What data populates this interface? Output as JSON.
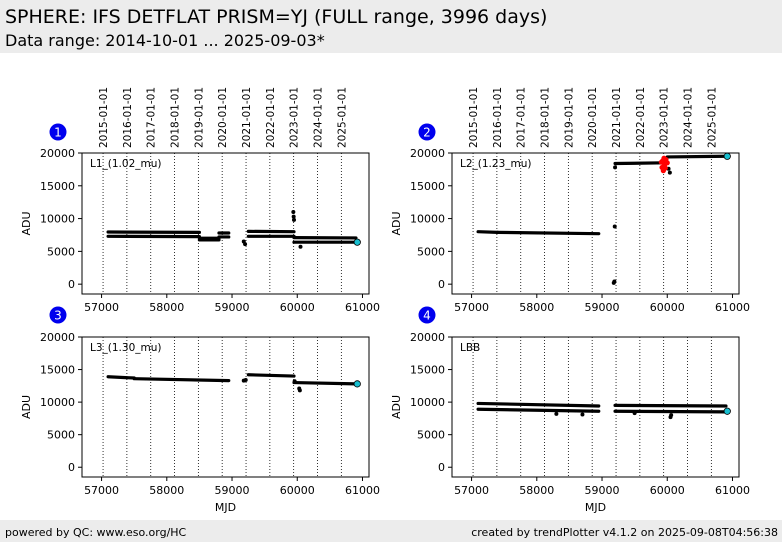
{
  "header": {
    "title": "SPHERE: IFS DETFLAT PRISM=YJ (FULL range, 3996 days)",
    "subtitle": "Data range: 2014-10-01 ... 2025-09-03*"
  },
  "footer": {
    "left": "powered by QC: www.eso.org/HC",
    "right": "created by trendPlotter v4.1.2 on 2025-09-08T04:56:38"
  },
  "colors": {
    "data": "#000000",
    "latest": "#17becf",
    "outlier": "#ff0000",
    "badge": "#0000ee"
  },
  "chart_data": [
    {
      "type": "scatter",
      "badge": "1",
      "panel_label": "L1_(1.02_mu)",
      "ylabel": "ADU",
      "xlabel": "",
      "xlim": [
        56700,
        61100
      ],
      "ylim": [
        -1500,
        20000
      ],
      "yticks": [
        0,
        5000,
        10000,
        15000,
        20000
      ],
      "xticks": [
        57000,
        58000,
        59000,
        60000,
        61000
      ],
      "top_dates": [
        "2015-01-01",
        "2016-01-01",
        "2017-01-01",
        "2018-01-01",
        "2019-01-01",
        "2020-01-01",
        "2021-01-01",
        "2022-01-01",
        "2023-01-01",
        "2024-01-01",
        "2025-01-01"
      ],
      "year_mjd": [
        57023,
        57388,
        57754,
        58119,
        58484,
        58849,
        59215,
        59580,
        59945,
        60310,
        60676
      ],
      "segments": [
        {
          "x": [
            57100,
            58500
          ],
          "y": [
            7950,
            7900
          ]
        },
        {
          "x": [
            57100,
            58500
          ],
          "y": [
            7300,
            7250
          ]
        },
        {
          "x": [
            58500,
            58800
          ],
          "y": [
            7000,
            7000
          ]
        },
        {
          "x": [
            58500,
            58800
          ],
          "y": [
            6750,
            6750
          ]
        },
        {
          "x": [
            58800,
            58950
          ],
          "y": [
            7800,
            7800
          ]
        },
        {
          "x": [
            58800,
            58950
          ],
          "y": [
            7200,
            7200
          ]
        },
        {
          "x": [
            59250,
            59950
          ],
          "y": [
            8050,
            8000
          ]
        },
        {
          "x": [
            59250,
            59950
          ],
          "y": [
            7300,
            7300
          ]
        },
        {
          "x": [
            59950,
            60900
          ],
          "y": [
            7100,
            7050
          ]
        },
        {
          "x": [
            59950,
            60900
          ],
          "y": [
            6400,
            6400
          ]
        }
      ],
      "points": [
        {
          "x": 59180,
          "y": 6500
        },
        {
          "x": 59200,
          "y": 6100
        },
        {
          "x": 59940,
          "y": 11000
        },
        {
          "x": 59945,
          "y": 10300
        },
        {
          "x": 59950,
          "y": 9800
        },
        {
          "x": 60050,
          "y": 5700
        }
      ],
      "outliers": [],
      "latest": {
        "x": 60920,
        "y": 6400
      }
    },
    {
      "type": "scatter",
      "badge": "2",
      "panel_label": "L2_(1.23_mu)",
      "ylabel": "ADU",
      "xlabel": "",
      "xlim": [
        56700,
        61100
      ],
      "ylim": [
        -1500,
        20000
      ],
      "yticks": [
        0,
        5000,
        10000,
        15000,
        20000
      ],
      "xticks": [
        57000,
        58000,
        59000,
        60000,
        61000
      ],
      "top_dates": [
        "2015-01-01",
        "2016-01-01",
        "2017-01-01",
        "2018-01-01",
        "2019-01-01",
        "2020-01-01",
        "2021-01-01",
        "2022-01-01",
        "2023-01-01",
        "2024-01-01",
        "2025-01-01"
      ],
      "year_mjd": [
        57023,
        57388,
        57754,
        58119,
        58484,
        58849,
        59215,
        59580,
        59945,
        60310,
        60676
      ],
      "segments": [
        {
          "x": [
            57100,
            57400
          ],
          "y": [
            8000,
            7900
          ]
        },
        {
          "x": [
            57400,
            58950
          ],
          "y": [
            7900,
            7700
          ]
        },
        {
          "x": [
            59200,
            59950
          ],
          "y": [
            18400,
            18500
          ]
        },
        {
          "x": [
            60000,
            60900
          ],
          "y": [
            19400,
            19500
          ]
        }
      ],
      "points": [
        {
          "x": 59180,
          "y": 200
        },
        {
          "x": 59190,
          "y": 400
        },
        {
          "x": 59195,
          "y": 8800
        },
        {
          "x": 59200,
          "y": 17800
        },
        {
          "x": 60040,
          "y": 17000
        },
        {
          "x": 60020,
          "y": 17600
        }
      ],
      "outliers": [
        {
          "x": 59920,
          "y": 17800
        },
        {
          "x": 59930,
          "y": 18800
        },
        {
          "x": 59940,
          "y": 17300
        },
        {
          "x": 59950,
          "y": 19200
        },
        {
          "x": 59960,
          "y": 18200
        },
        {
          "x": 59970,
          "y": 17700
        },
        {
          "x": 59980,
          "y": 19000
        },
        {
          "x": 60000,
          "y": 18500
        },
        {
          "x": 59910,
          "y": 18600
        }
      ],
      "latest": {
        "x": 60920,
        "y": 19500
      }
    },
    {
      "type": "scatter",
      "badge": "3",
      "panel_label": "L3_(1.30_mu)",
      "ylabel": "ADU",
      "xlabel": "MJD",
      "xlim": [
        56700,
        61100
      ],
      "ylim": [
        -1500,
        20000
      ],
      "yticks": [
        0,
        5000,
        10000,
        15000,
        20000
      ],
      "xticks": [
        57000,
        58000,
        59000,
        60000,
        61000
      ],
      "top_dates": [],
      "year_mjd": [
        57023,
        57388,
        57754,
        58119,
        58484,
        58849,
        59215,
        59580,
        59945,
        60310,
        60676
      ],
      "segments": [
        {
          "x": [
            57100,
            57500
          ],
          "y": [
            13900,
            13700
          ]
        },
        {
          "x": [
            57500,
            58950
          ],
          "y": [
            13600,
            13300
          ]
        },
        {
          "x": [
            59250,
            59950
          ],
          "y": [
            14200,
            14000
          ]
        },
        {
          "x": [
            59950,
            60900
          ],
          "y": [
            13000,
            12800
          ]
        }
      ],
      "points": [
        {
          "x": 59180,
          "y": 13300
        },
        {
          "x": 59210,
          "y": 13400
        },
        {
          "x": 60030,
          "y": 12100
        },
        {
          "x": 60040,
          "y": 11800
        },
        {
          "x": 59960,
          "y": 13200
        }
      ],
      "outliers": [],
      "latest": {
        "x": 60920,
        "y": 12800
      }
    },
    {
      "type": "scatter",
      "badge": "4",
      "panel_label": "LBB",
      "ylabel": "ADU",
      "xlabel": "MJD",
      "xlim": [
        56700,
        61100
      ],
      "ylim": [
        -1500,
        20000
      ],
      "yticks": [
        0,
        5000,
        10000,
        15000,
        20000
      ],
      "xticks": [
        57000,
        58000,
        59000,
        60000,
        61000
      ],
      "top_dates": [],
      "year_mjd": [
        57023,
        57388,
        57754,
        58119,
        58484,
        58849,
        59215,
        59580,
        59945,
        60310,
        60676
      ],
      "segments": [
        {
          "x": [
            57100,
            58950
          ],
          "y": [
            9800,
            9400
          ]
        },
        {
          "x": [
            57100,
            58950
          ],
          "y": [
            8900,
            8600
          ]
        },
        {
          "x": [
            59200,
            60900
          ],
          "y": [
            9500,
            9400
          ]
        },
        {
          "x": [
            59200,
            60900
          ],
          "y": [
            8600,
            8500
          ]
        }
      ],
      "points": [
        {
          "x": 58300,
          "y": 8200
        },
        {
          "x": 58700,
          "y": 8100
        },
        {
          "x": 60050,
          "y": 7700
        },
        {
          "x": 60060,
          "y": 8000
        },
        {
          "x": 59500,
          "y": 8300
        }
      ],
      "outliers": [],
      "latest": {
        "x": 60920,
        "y": 8600
      }
    }
  ]
}
